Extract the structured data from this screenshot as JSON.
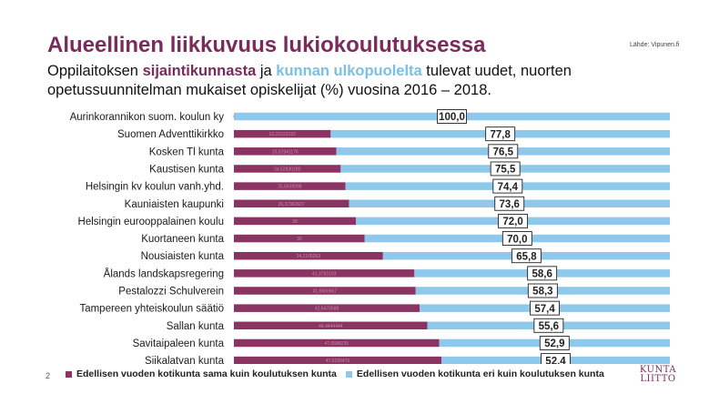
{
  "header": {
    "title": "Alueellinen liikkuvuus lukiokoulutuksessa",
    "source": "Lähde: Vipunen.fi",
    "subtitle_line1_a": "Oppilaitoksen ",
    "subtitle_line1_hl1": "sijaintikunnasta",
    "subtitle_line1_b": " ja ",
    "subtitle_line1_hl2": "kunnan ulkopuolelta",
    "subtitle_line1_c": " tulevat uudet, nuorten",
    "subtitle_line2": "opetussuunnitelman mukaiset opiskelijat (%) vuosina 2016 – 2018."
  },
  "footer": {
    "page_number": "2",
    "logo_line1": "KUNTA",
    "logo_line2": "LIITTO"
  },
  "colors": {
    "same": "#8b3362",
    "other": "#8ec8ea",
    "title": "#7a2b5c"
  },
  "chart_data": {
    "type": "bar",
    "orientation": "horizontal",
    "stacked": true,
    "xlim": [
      0,
      100
    ],
    "categories": [
      "Aurinkorannikon suom. koulun ky",
      "Suomen Adventtikirkko",
      "Kosken Tl kunta",
      "Kaustisen kunta",
      "Helsingin kv koulun vanh.yhd.",
      "Kauniaisten kaupunki",
      "Helsingin eurooppalainen koulu",
      "Kuortaneen kunta",
      "Nousiaisten kunta",
      "Ålands landskapsregering",
      "Pestalozzi Schulverein",
      "Tampereen yhteiskoulun säätiö",
      "Sallan kunta",
      "Savitaipaleen kunta",
      "Siikalatvan kunta"
    ],
    "series": [
      {
        "name": "Edellisen vuoden kotikunta sama kuin koulutuksen kunta",
        "values": [
          0,
          22.2,
          23.5,
          24.5,
          25.6,
          26.4,
          28.0,
          30.0,
          34.2,
          41.4,
          41.7,
          42.6,
          44.4,
          47.1,
          47.6
        ],
        "labels": [
          "0",
          "22,22222222",
          "23,52941176",
          "24,52830189",
          "25,5639098",
          "26,37362637",
          "28",
          "30",
          "34,2105263",
          "41,3793103",
          "41,6666667",
          "42,6470588",
          "44,4444444",
          "47,0588235",
          "47,6190476"
        ]
      },
      {
        "name": "Edellisen vuoden kotikunta eri kuin koulutuksen kunta",
        "values": [
          100.0,
          77.8,
          76.5,
          75.5,
          74.4,
          73.6,
          72.0,
          70.0,
          65.8,
          58.6,
          58.3,
          57.4,
          55.6,
          52.9,
          52.4
        ],
        "labels": [
          "100,0",
          "77,8",
          "76,5",
          "75,5",
          "74,4",
          "73,6",
          "72,0",
          "70,0",
          "65,8",
          "58,6",
          "58,3",
          "57,4",
          "55,6",
          "52,9",
          "52,4"
        ]
      }
    ]
  }
}
